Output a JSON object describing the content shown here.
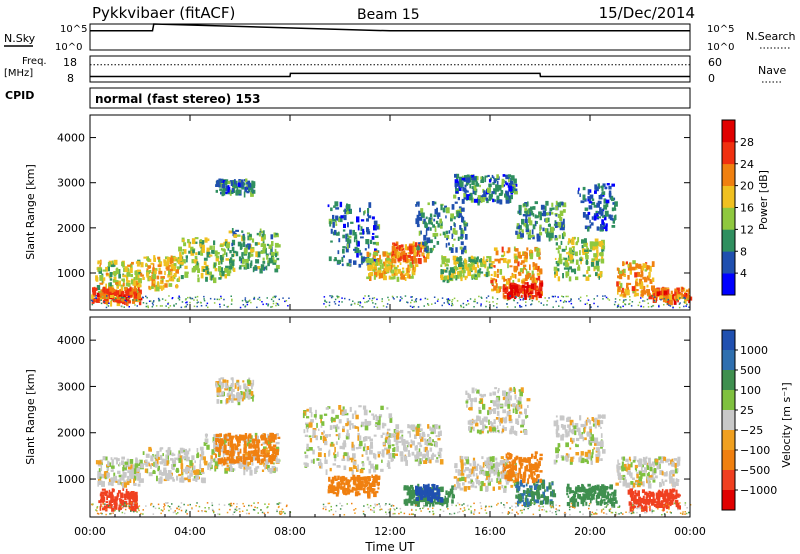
{
  "header": {
    "station": "Pykkvibaer (fitACF)",
    "beam": "Beam 15",
    "date": "15/Dec/2014"
  },
  "cpid_text": "normal (fast stereo) 153",
  "panel_labels": {
    "nsky": "N.Sky",
    "nsearch": "N.Search",
    "freq": "Freq.",
    "freq_unit": "[MHz]",
    "nave": "Nave",
    "cpid": "CPID"
  },
  "colors": {
    "power_scale": [
      "#0000ff",
      "#1f4faf",
      "#2f8f5f",
      "#8fc83f",
      "#f0c020",
      "#f08010",
      "#f03010",
      "#e00000"
    ],
    "velocity_scale": [
      "#2050b0",
      "#2f6faf",
      "#3f8f4f",
      "#7fc03f",
      "#c8c8c8",
      "#f0a020",
      "#f08010",
      "#f04020",
      "#e00000"
    ]
  },
  "chart_data": [
    {
      "type": "line",
      "name": "nsky-nsearch",
      "y_left_ticks": [
        "10^5",
        "10^0"
      ],
      "y_right_ticks": [
        "10^5",
        "10^0"
      ],
      "series": [
        {
          "name": "N.Sky",
          "x": [
            "00:00",
            "02:30",
            "02:33",
            "12:00",
            "21:00",
            "24:00"
          ],
          "y": [
            5000,
            5000,
            100000,
            5000,
            5000,
            5000
          ]
        },
        {
          "name": "N.Search",
          "x": [
            "00:00",
            "24:00"
          ],
          "y": [
            10000,
            10000
          ]
        }
      ]
    },
    {
      "type": "line",
      "name": "freq-nave",
      "y_left_ticks": [
        "18",
        "8"
      ],
      "y_right_ticks": [
        "60",
        "0"
      ],
      "ylim_left": [
        8,
        18
      ],
      "ylim_right": [
        0,
        60
      ],
      "series": [
        {
          "name": "Freq.",
          "x": [
            "00:00",
            "08:00",
            "08:01",
            "18:00",
            "18:01",
            "24:00"
          ],
          "y": [
            10.1,
            10.1,
            11.3,
            11.3,
            10.1,
            10.1
          ]
        },
        {
          "name": "Nave",
          "x": [
            "00:00",
            "24:00"
          ],
          "y": [
            40,
            40
          ]
        }
      ]
    },
    {
      "type": "heatmap",
      "name": "power",
      "xlabel": "",
      "ylabel": "Slant Range [km]",
      "xlim": [
        0,
        24
      ],
      "ylim": [
        180,
        4500
      ],
      "y_ticks": [
        1000,
        2000,
        3000,
        4000
      ],
      "colorbar": {
        "label": "Power [dB]",
        "ticks": [
          4,
          8,
          12,
          16,
          20,
          24,
          28
        ],
        "range": [
          0,
          32
        ]
      },
      "blobs": [
        {
          "t": [
            0.2,
            2.0
          ],
          "r": [
            600,
            1300
          ],
          "v": 16
        },
        {
          "t": [
            2.0,
            3.5
          ],
          "r": [
            700,
            1400
          ],
          "v": 18
        },
        {
          "t": [
            3.5,
            5.5
          ],
          "r": [
            900,
            1800
          ],
          "v": 14
        },
        {
          "t": [
            5.5,
            7.5
          ],
          "r": [
            1100,
            2000
          ],
          "v": 12
        },
        {
          "t": [
            5.0,
            6.5
          ],
          "r": [
            2800,
            3100
          ],
          "v": 8
        },
        {
          "t": [
            0.0,
            2.0
          ],
          "r": [
            380,
            700
          ],
          "v": 24
        },
        {
          "t": [
            9.5,
            11.5
          ],
          "r": [
            1200,
            2600
          ],
          "v": 8
        },
        {
          "t": [
            11.0,
            13.0
          ],
          "r": [
            900,
            1500
          ],
          "v": 18
        },
        {
          "t": [
            12.0,
            13.5
          ],
          "r": [
            1300,
            1700
          ],
          "v": 22
        },
        {
          "t": [
            13.0,
            15.0
          ],
          "r": [
            1500,
            2600
          ],
          "v": 9
        },
        {
          "t": [
            14.0,
            16.0
          ],
          "r": [
            900,
            1400
          ],
          "v": 14
        },
        {
          "t": [
            16.0,
            18.0
          ],
          "r": [
            600,
            1600
          ],
          "v": 20
        },
        {
          "t": [
            16.5,
            18.0
          ],
          "r": [
            500,
            800
          ],
          "v": 28
        },
        {
          "t": [
            17.0,
            19.0
          ],
          "r": [
            1800,
            2600
          ],
          "v": 10
        },
        {
          "t": [
            18.5,
            20.5
          ],
          "r": [
            900,
            1800
          ],
          "v": 14
        },
        {
          "t": [
            19.5,
            21.0
          ],
          "r": [
            2000,
            3000
          ],
          "v": 7
        },
        {
          "t": [
            21.0,
            22.5
          ],
          "r": [
            500,
            1300
          ],
          "v": 20
        },
        {
          "t": [
            22.5,
            24.0
          ],
          "r": [
            400,
            700
          ],
          "v": 24
        },
        {
          "t": [
            14.5,
            17.0
          ],
          "r": [
            2600,
            3200
          ],
          "v": 8
        }
      ]
    },
    {
      "type": "heatmap",
      "name": "velocity",
      "xlabel": "Time UT",
      "ylabel": "Slant Range [km]",
      "xlim": [
        0,
        24
      ],
      "ylim": [
        180,
        4500
      ],
      "x_ticks": [
        "00:00",
        "04:00",
        "08:00",
        "12:00",
        "16:00",
        "20:00",
        "00:00"
      ],
      "y_ticks": [
        1000,
        2000,
        3000,
        4000
      ],
      "colorbar": {
        "label": "Velocity [m s⁻¹]",
        "ticks": [
          "1000",
          "500",
          "100",
          "25",
          "−25",
          "−100",
          "−500",
          "−1000"
        ]
      },
      "blobs": [
        {
          "t": [
            0.2,
            2.0
          ],
          "r": [
            900,
            1500
          ],
          "v": 0
        },
        {
          "t": [
            0.3,
            1.8
          ],
          "r": [
            380,
            800
          ],
          "v": -400
        },
        {
          "t": [
            2.0,
            4.5
          ],
          "r": [
            1000,
            1700
          ],
          "v": 0
        },
        {
          "t": [
            4.5,
            7.5
          ],
          "r": [
            1200,
            2000
          ],
          "v": 0
        },
        {
          "t": [
            5.0,
            7.5
          ],
          "r": [
            1400,
            2000
          ],
          "v": -150
        },
        {
          "t": [
            5.0,
            6.5
          ],
          "r": [
            2700,
            3200
          ],
          "v": 0
        },
        {
          "t": [
            8.5,
            12.0
          ],
          "r": [
            1200,
            2600
          ],
          "v": 0
        },
        {
          "t": [
            9.5,
            11.5
          ],
          "r": [
            700,
            1100
          ],
          "v": -200
        },
        {
          "t": [
            12.0,
            14.0
          ],
          "r": [
            1400,
            2200
          ],
          "v": 0
        },
        {
          "t": [
            12.5,
            14.5
          ],
          "r": [
            500,
            900
          ],
          "v": 200
        },
        {
          "t": [
            13.0,
            14.0
          ],
          "r": [
            600,
            900
          ],
          "v": 800
        },
        {
          "t": [
            14.5,
            17.0
          ],
          "r": [
            800,
            1500
          ],
          "v": 0
        },
        {
          "t": [
            15.0,
            17.5
          ],
          "r": [
            2000,
            3000
          ],
          "v": 0
        },
        {
          "t": [
            17.0,
            18.5
          ],
          "r": [
            500,
            1000
          ],
          "v": 300
        },
        {
          "t": [
            16.5,
            18.0
          ],
          "r": [
            1000,
            1600
          ],
          "v": -150
        },
        {
          "t": [
            18.5,
            20.5
          ],
          "r": [
            1400,
            2400
          ],
          "v": 0
        },
        {
          "t": [
            19.0,
            21.0
          ],
          "r": [
            500,
            900
          ],
          "v": 200
        },
        {
          "t": [
            21.0,
            23.5
          ],
          "r": [
            900,
            1500
          ],
          "v": 0
        },
        {
          "t": [
            21.5,
            23.5
          ],
          "r": [
            400,
            800
          ],
          "v": -400
        }
      ]
    }
  ]
}
